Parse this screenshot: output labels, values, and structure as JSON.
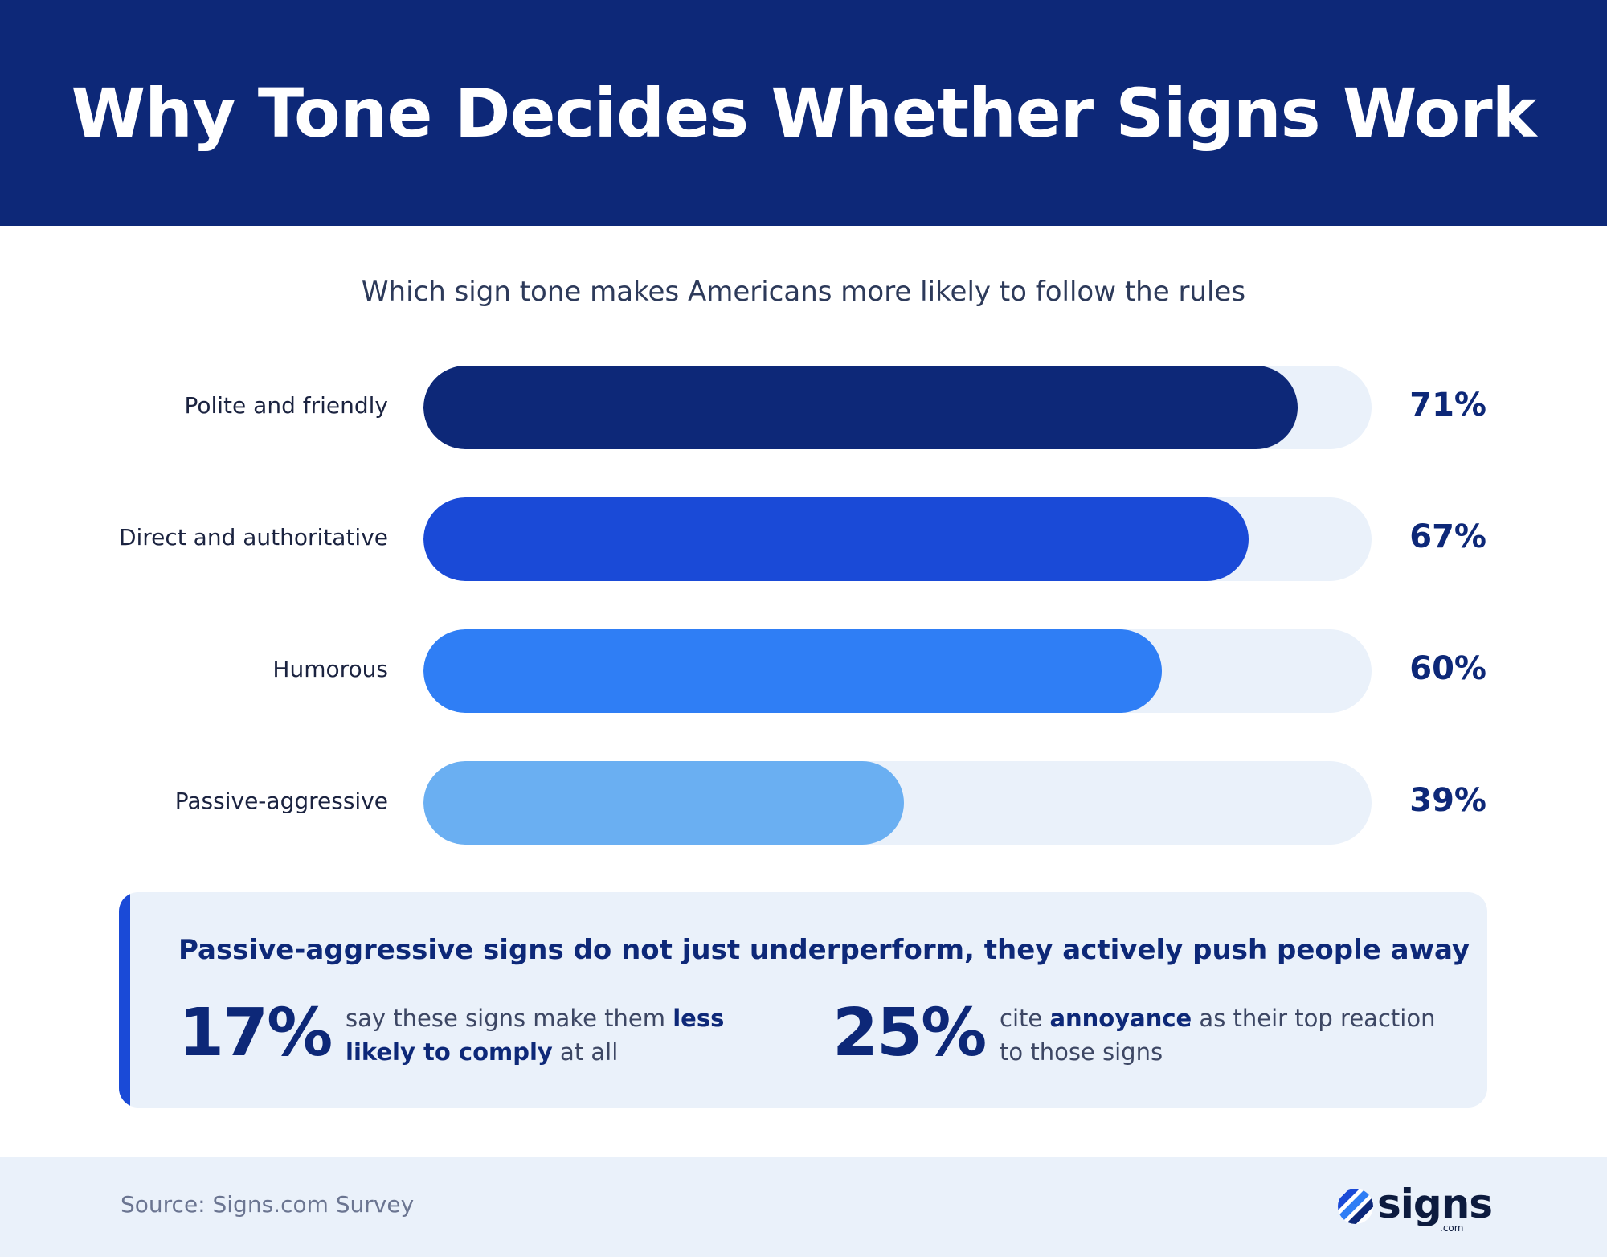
{
  "header": {
    "title": "Why Tone Decides Whether Signs Work"
  },
  "chart_data": {
    "type": "bar",
    "orientation": "horizontal",
    "title": "Which sign tone makes Americans more likely to follow the rules",
    "categories": [
      "Polite and friendly",
      "Direct and authoritative",
      "Humorous",
      "Passive-aggressive"
    ],
    "values": [
      71,
      67,
      60,
      39
    ],
    "value_labels": [
      "71%",
      "67%",
      "60%",
      "39%"
    ],
    "colors": [
      "#0d2878",
      "#1a4ad7",
      "#2f7ef5",
      "#6aaff2"
    ],
    "track_color": "#eaf1fa",
    "xlim": [
      0,
      77
    ],
    "grid": false
  },
  "callout": {
    "headline": "Passive-aggressive signs do not just underperform, they actively push people away",
    "stats": [
      {
        "value": "17%",
        "text_before": "say these signs make them ",
        "text_bold": "less likely to comply",
        "text_after": " at all"
      },
      {
        "value": "25%",
        "text_before": "cite ",
        "text_bold": "annoyance",
        "text_after": " as their top reaction to those signs"
      }
    ]
  },
  "footer": {
    "source": "Source: Signs.com Survey",
    "logo_text": "signs",
    "logo_sub": ".com"
  },
  "colors": {
    "navy": "#0d2878",
    "accent_blue": "#1a4ad7",
    "light_bg": "#eaf1fa"
  }
}
